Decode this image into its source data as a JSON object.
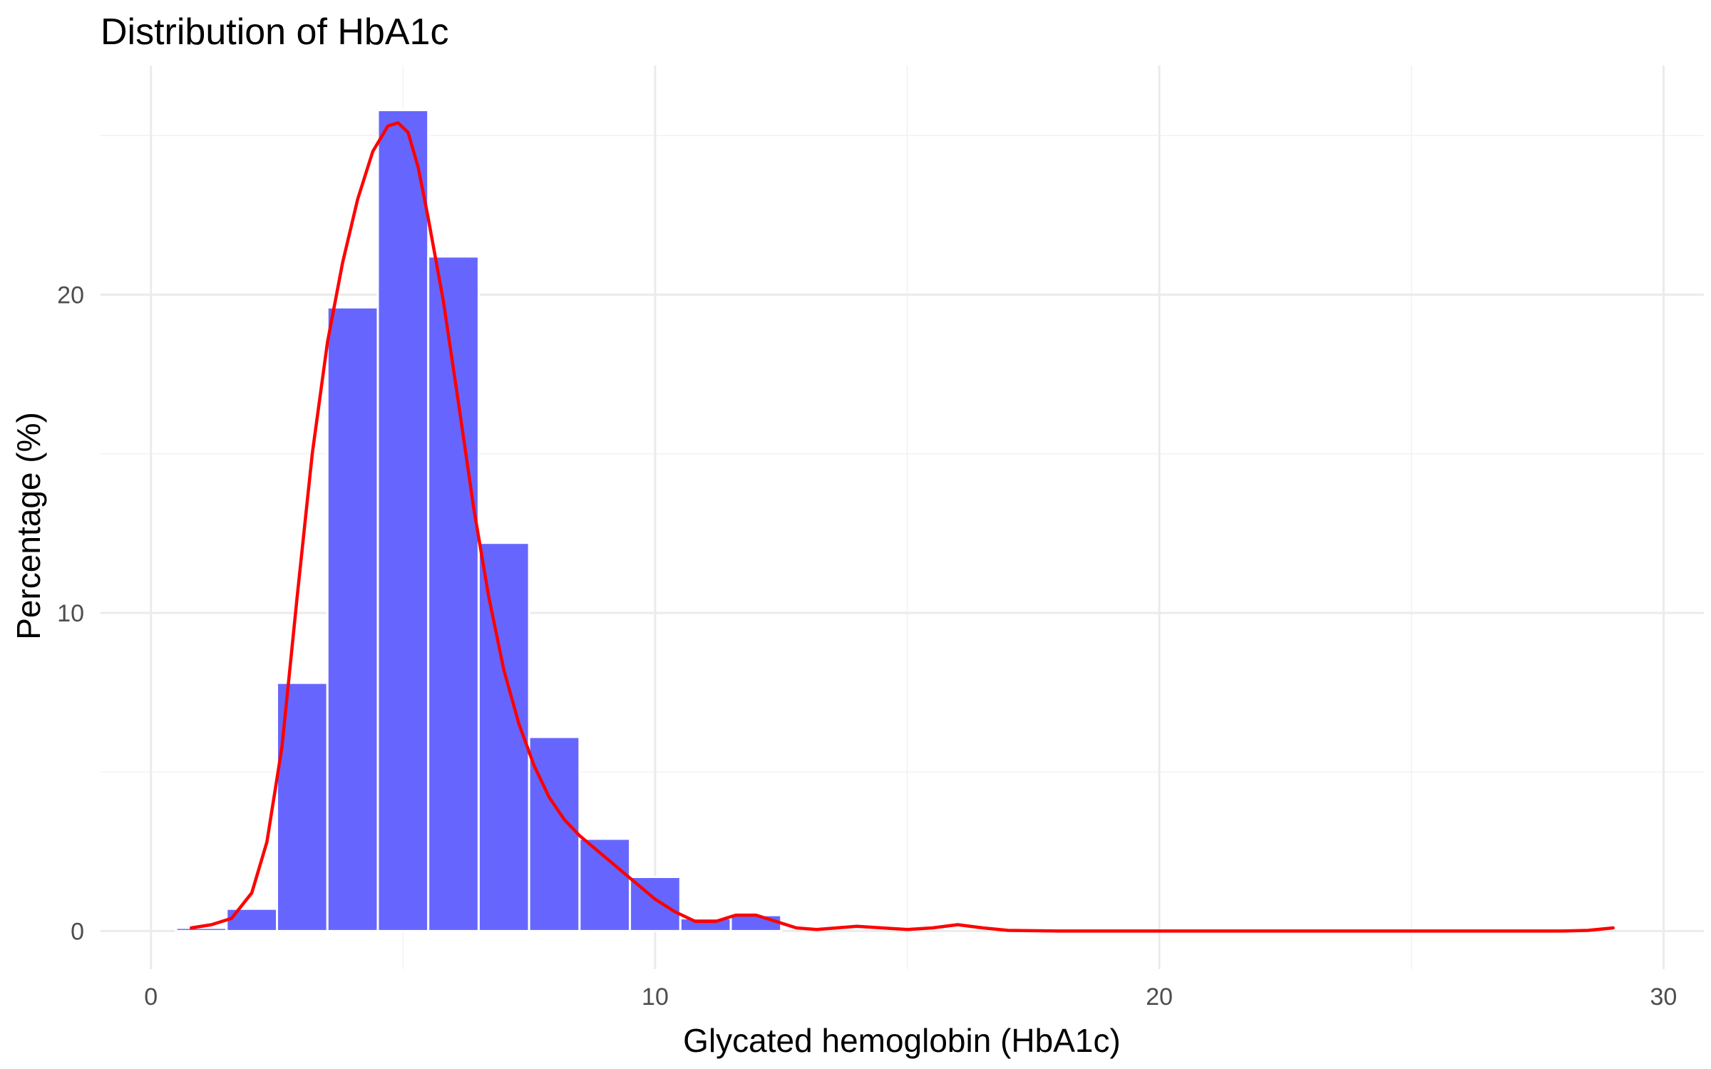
{
  "chart_data": {
    "type": "bar",
    "title": "Distribution of HbA1c",
    "xlabel": "Glycated hemoglobin (HbA1c)",
    "ylabel": "Percentage (%)",
    "xlim": [
      -1,
      30.8
    ],
    "ylim": [
      -1.2,
      27.2
    ],
    "x_ticks": [
      0,
      10,
      20,
      30
    ],
    "y_ticks": [
      0,
      10,
      20
    ],
    "grid": true,
    "legend": "none",
    "bin_width": 1,
    "bins": [
      {
        "x": 1,
        "value": 0.1
      },
      {
        "x": 2,
        "value": 0.7
      },
      {
        "x": 3,
        "value": 7.8
      },
      {
        "x": 4,
        "value": 19.6
      },
      {
        "x": 5,
        "value": 25.8
      },
      {
        "x": 6,
        "value": 21.2
      },
      {
        "x": 7,
        "value": 12.2
      },
      {
        "x": 8,
        "value": 6.1
      },
      {
        "x": 9,
        "value": 2.9
      },
      {
        "x": 10,
        "value": 1.7
      },
      {
        "x": 11,
        "value": 0.4
      },
      {
        "x": 12,
        "value": 0.5
      }
    ],
    "density_curve": {
      "x": [
        0.8,
        1.2,
        1.6,
        2.0,
        2.3,
        2.6,
        2.9,
        3.2,
        3.5,
        3.8,
        4.1,
        4.4,
        4.7,
        4.9,
        5.1,
        5.3,
        5.5,
        5.8,
        6.1,
        6.4,
        6.7,
        7.0,
        7.3,
        7.6,
        7.9,
        8.2,
        8.5,
        8.8,
        9.1,
        9.4,
        9.7,
        10.0,
        10.4,
        10.8,
        11.2,
        11.6,
        12.0,
        12.4,
        12.8,
        13.2,
        13.6,
        14.0,
        14.5,
        15.0,
        15.5,
        16.0,
        16.5,
        17.0,
        18,
        20,
        22,
        24,
        26,
        28,
        28.5,
        29.0
      ],
      "y": [
        0.1,
        0.2,
        0.4,
        1.2,
        2.8,
        5.8,
        10.5,
        15.0,
        18.5,
        21.0,
        23.0,
        24.5,
        25.3,
        25.4,
        25.1,
        24.0,
        22.4,
        19.8,
        16.6,
        13.3,
        10.5,
        8.2,
        6.5,
        5.2,
        4.2,
        3.5,
        3.0,
        2.6,
        2.2,
        1.8,
        1.4,
        1.0,
        0.6,
        0.3,
        0.3,
        0.5,
        0.5,
        0.3,
        0.1,
        0.05,
        0.1,
        0.15,
        0.1,
        0.05,
        0.1,
        0.2,
        0.1,
        0.02,
        0.0,
        0.0,
        0.0,
        0.0,
        0.0,
        0.0,
        0.02,
        0.1
      ]
    },
    "colors": {
      "bar_fill": "#6666ff",
      "bar_border": "#ffffff",
      "curve": "#ff0000",
      "grid": "#ebebeb"
    }
  }
}
